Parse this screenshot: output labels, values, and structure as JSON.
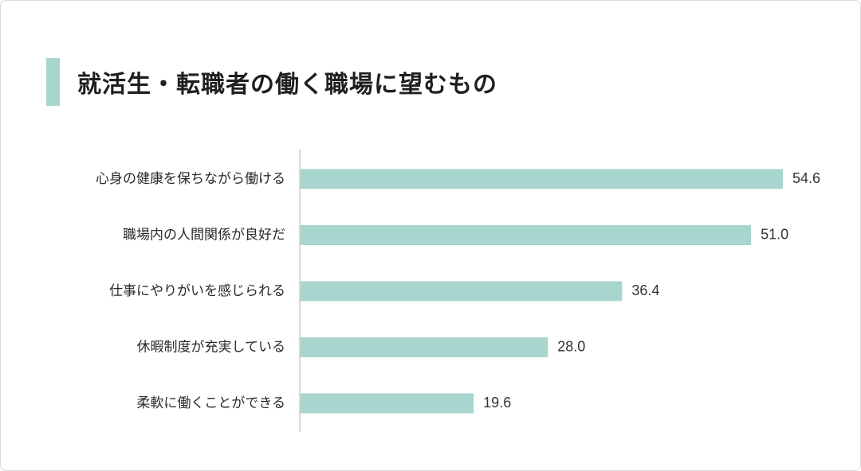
{
  "title": "就活生・転職者の働く職場に望むもの",
  "colors": {
    "bar": "#a8d5cd",
    "accent": "#a8d5cd",
    "axis": "#c8c8c8"
  },
  "chart_data": {
    "type": "bar",
    "orientation": "horizontal",
    "title": "就活生・転職者の働く職場に望むもの",
    "categories": [
      "心身の健康を保ちながら働ける",
      "職場内の人間関係が良好だ",
      "仕事にやりがいを感じられる",
      "休暇制度が充実している",
      "柔軟に働くことができる"
    ],
    "values": [
      54.6,
      51.0,
      36.4,
      28.0,
      19.6
    ],
    "value_labels": [
      "54.6",
      "51.0",
      "36.4",
      "28.0",
      "19.6"
    ],
    "xlim": [
      0,
      54.6
    ],
    "grid": false,
    "legend": "none"
  }
}
